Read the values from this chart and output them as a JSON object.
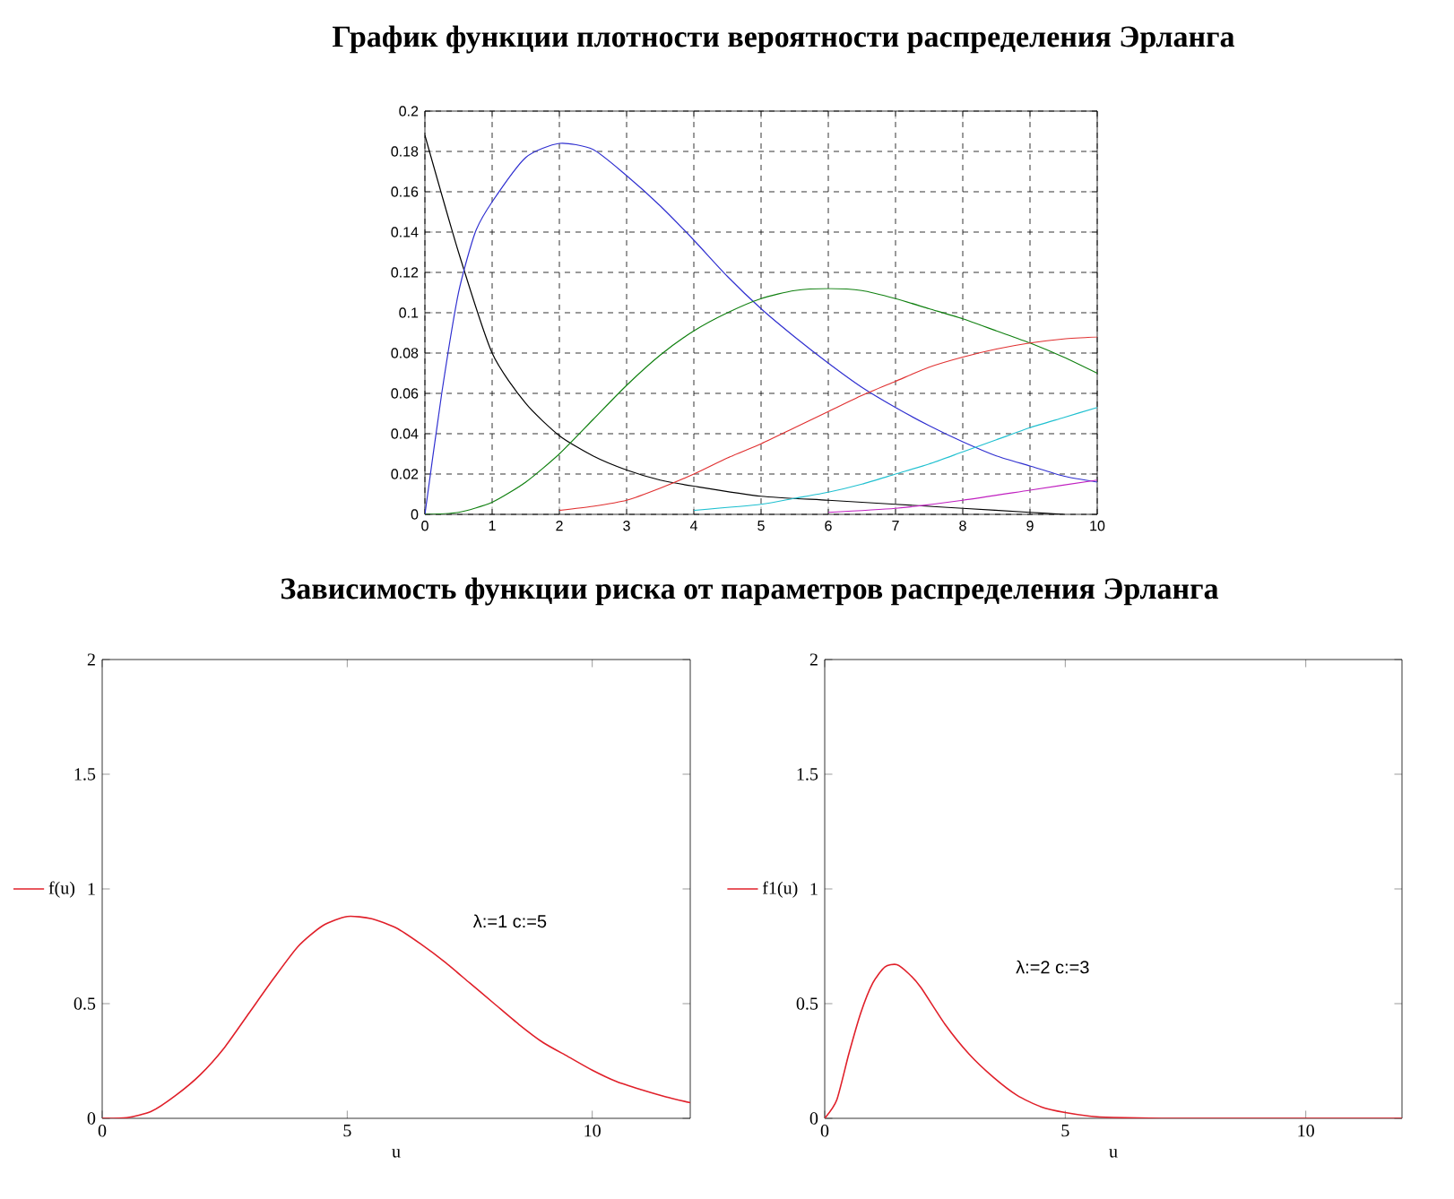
{
  "chart_data": [
    {
      "type": "line",
      "title": "График функции плотности вероятности распределения Эрланга",
      "xlim": [
        0,
        10
      ],
      "ylim": [
        0,
        0.2
      ],
      "xticks": [
        0,
        1,
        2,
        3,
        4,
        5,
        6,
        7,
        8,
        9,
        10
      ],
      "yticks": [
        0,
        0.02,
        0.04,
        0.06,
        0.08,
        0.1,
        0.12,
        0.14,
        0.16,
        0.18,
        0.2
      ],
      "grid": true,
      "marker": "none",
      "series": [
        {
          "color": "#000000",
          "x": [
            0,
            0.5,
            1,
            1.5,
            2,
            2.5,
            3,
            3.5,
            4,
            5,
            6,
            7,
            8,
            9,
            9.5
          ],
          "values": [
            0.188,
            0.13,
            0.08,
            0.055,
            0.039,
            0.029,
            0.022,
            0.017,
            0.014,
            0.009,
            0.007,
            0.005,
            0.003,
            0.001,
            0.0
          ]
        },
        {
          "color": "#3030d0",
          "x": [
            0,
            0.25,
            0.5,
            0.75,
            1,
            1.5,
            2,
            2.5,
            3,
            3.5,
            4,
            4.5,
            5,
            5.5,
            6,
            6.5,
            7,
            7.5,
            8,
            8.5,
            9,
            9.5,
            10
          ],
          "values": [
            0,
            0.06,
            0.11,
            0.14,
            0.155,
            0.177,
            0.184,
            0.181,
            0.168,
            0.153,
            0.136,
            0.118,
            0.102,
            0.088,
            0.075,
            0.063,
            0.053,
            0.044,
            0.036,
            0.029,
            0.024,
            0.019,
            0.016
          ]
        },
        {
          "color": "#108010",
          "x": [
            0,
            0.5,
            1,
            1.5,
            2,
            2.5,
            3,
            3.5,
            4,
            4.5,
            5,
            5.5,
            6,
            6.5,
            7,
            7.5,
            8,
            8.5,
            9,
            9.5,
            10
          ],
          "values": [
            0,
            0.001,
            0.006,
            0.016,
            0.03,
            0.047,
            0.064,
            0.079,
            0.091,
            0.1,
            0.107,
            0.111,
            0.112,
            0.111,
            0.107,
            0.102,
            0.097,
            0.091,
            0.085,
            0.078,
            0.07
          ]
        },
        {
          "color": "#e03030",
          "x": [
            2,
            2.5,
            3,
            3.5,
            4,
            4.5,
            5,
            5.5,
            6,
            6.5,
            7,
            7.5,
            8,
            8.5,
            9,
            9.5,
            10
          ],
          "values": [
            0.002,
            0.004,
            0.007,
            0.013,
            0.02,
            0.028,
            0.035,
            0.043,
            0.051,
            0.059,
            0.066,
            0.073,
            0.078,
            0.082,
            0.085,
            0.087,
            0.088
          ]
        },
        {
          "color": "#20c0d0",
          "x": [
            4,
            5,
            5.5,
            6,
            6.5,
            7,
            7.5,
            8,
            8.5,
            9,
            9.5,
            10
          ],
          "values": [
            0.002,
            0.005,
            0.008,
            0.011,
            0.015,
            0.02,
            0.025,
            0.031,
            0.037,
            0.043,
            0.048,
            0.053
          ]
        },
        {
          "color": "#c020c0",
          "x": [
            6,
            7,
            8,
            9,
            10
          ],
          "values": [
            0.001,
            0.003,
            0.007,
            0.012,
            0.017
          ]
        }
      ]
    },
    {
      "type": "line",
      "title": "Зависимость функции риска от параметров распределения Эрланга",
      "xlabel": "u",
      "xlim": [
        0,
        12
      ],
      "ylim": [
        0,
        2
      ],
      "xticks": [
        0,
        5,
        10
      ],
      "yticks": [
        0,
        0.5,
        1,
        1.5,
        2
      ],
      "legend": "left",
      "annotations": [
        "λ:=1 c:=5"
      ],
      "series": [
        {
          "name": "f(u)",
          "color": "#e0202a",
          "x": [
            0,
            0.5,
            1,
            1.5,
            2,
            2.5,
            3,
            3.5,
            4,
            4.5,
            5,
            5.5,
            6,
            6.5,
            7,
            7.5,
            8,
            8.5,
            9,
            9.5,
            10,
            10.5,
            11,
            11.5,
            12
          ],
          "values": [
            0,
            0.003,
            0.03,
            0.1,
            0.19,
            0.31,
            0.46,
            0.61,
            0.75,
            0.84,
            0.88,
            0.87,
            0.83,
            0.76,
            0.68,
            0.59,
            0.5,
            0.41,
            0.33,
            0.27,
            0.21,
            0.16,
            0.125,
            0.094,
            0.068
          ]
        }
      ]
    },
    {
      "type": "line",
      "xlabel": "u",
      "xlim": [
        0,
        12
      ],
      "ylim": [
        0,
        2
      ],
      "xticks": [
        0,
        5,
        10
      ],
      "yticks": [
        0,
        0.5,
        1,
        1.5,
        2
      ],
      "legend": "left",
      "annotations": [
        "λ:=2 c:=3"
      ],
      "series": [
        {
          "name": "f1(u)",
          "color": "#e0202a",
          "x": [
            0,
            0.25,
            0.5,
            0.75,
            1,
            1.25,
            1.5,
            1.75,
            2,
            2.5,
            3,
            3.5,
            4,
            4.5,
            5,
            5.5,
            6,
            7,
            8,
            10,
            12
          ],
          "values": [
            0,
            0.08,
            0.28,
            0.46,
            0.59,
            0.66,
            0.67,
            0.63,
            0.57,
            0.41,
            0.28,
            0.18,
            0.1,
            0.05,
            0.025,
            0.01,
            0.004,
            0,
            0,
            0,
            0
          ]
        }
      ]
    }
  ]
}
